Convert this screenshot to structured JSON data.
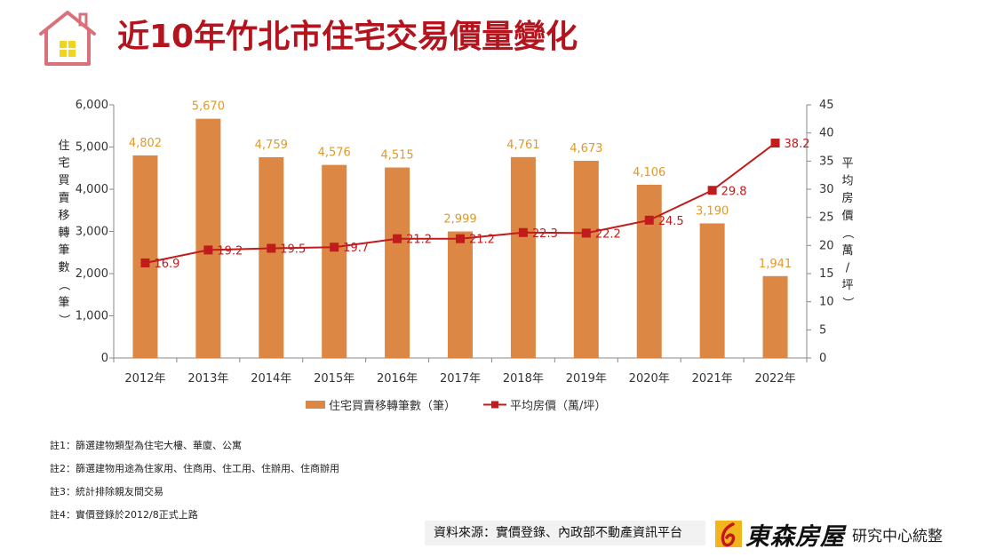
{
  "title": "近10年竹北市住宅交易價量變化",
  "chart_data": {
    "type": "bar+line",
    "categories": [
      "2012年",
      "2013年",
      "2014年",
      "2015年",
      "2016年",
      "2017年",
      "2018年",
      "2019年",
      "2020年",
      "2021年",
      "2022年"
    ],
    "series": [
      {
        "name": "住宅買賣移轉筆數（筆）",
        "type": "bar",
        "axis": "left",
        "color": "#dc8743",
        "values": [
          4802,
          5670,
          4759,
          4576,
          4515,
          2999,
          4761,
          4673,
          4106,
          3190,
          1941
        ],
        "labels": [
          "4,802",
          "5,670",
          "4,759",
          "4,576",
          "4,515",
          "2,999",
          "4,761",
          "4,673",
          "4,106",
          "3,190",
          "1,941"
        ],
        "label_color": "#e09a28"
      },
      {
        "name": "平均房價（萬/坪）",
        "type": "line",
        "axis": "right",
        "color": "#c01c1c",
        "values": [
          16.9,
          19.2,
          19.5,
          19.7,
          21.2,
          21.2,
          22.3,
          22.2,
          24.5,
          29.8,
          38.2
        ],
        "labels": [
          "16.9",
          "19.2",
          "19.5",
          "19.7",
          "21.2",
          "21.2",
          "22.3",
          "22.2",
          "24.5",
          "29.8",
          "38.2"
        ]
      }
    ],
    "ylabel_left": "住宅買賣移轉筆數（筆）",
    "ylabel_right": "平均房價（萬/坪）",
    "ylim_left": [
      0,
      6000
    ],
    "ylim_right": [
      0,
      45
    ],
    "yticks_left": [
      "0",
      "1,000",
      "2,000",
      "3,000",
      "4,000",
      "5,000",
      "6,000"
    ],
    "yticks_right": [
      "0",
      "5",
      "10",
      "15",
      "20",
      "25",
      "30",
      "35",
      "40",
      "45"
    ],
    "legend_position": "bottom",
    "grid": false
  },
  "notes": [
    "註1：篩選建物類型為住宅大樓、華廈、公寓",
    "註2：篩選建物用途為住家用、住商用、住工用、住辦用、住商辦用",
    "註3：統計排除親友間交易",
    "註4：實價登錄於2012/8正式上路"
  ],
  "source": "資料來源：實價登錄、內政部不動產資訊平台",
  "logo": {
    "brand": "東森房屋",
    "subtitle": "研究中心統整"
  },
  "colors": {
    "title": "#b3141d",
    "icon": "#d9707a",
    "window": "#f2d41e"
  }
}
